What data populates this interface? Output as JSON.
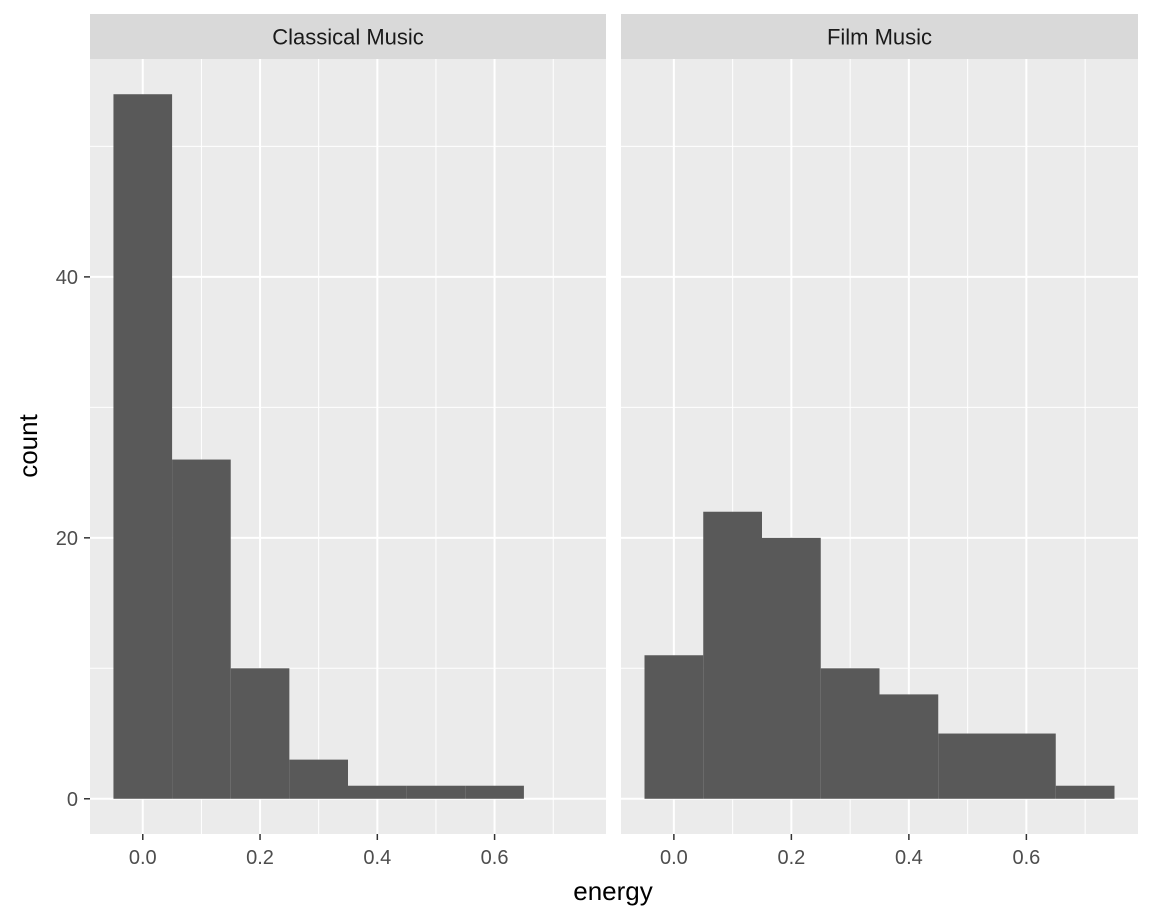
{
  "chart_data": {
    "type": "bar",
    "subtype": "faceted-histogram",
    "xlabel": "energy",
    "ylabel": "count",
    "bin_width": 0.1,
    "x_ticks": [
      0.0,
      0.2,
      0.4,
      0.6
    ],
    "x_tick_labels": [
      "0.0",
      "0.2",
      "0.4",
      "0.6"
    ],
    "y_ticks": [
      0,
      20,
      40
    ],
    "y_tick_labels": [
      "0",
      "20",
      "40"
    ],
    "xlim": [
      -0.09,
      0.79
    ],
    "ylim": [
      -2.7,
      56.7
    ],
    "grid": true,
    "panel_background": "#ebebeb",
    "strip_background": "#d9d9d9",
    "bar_color": "#595959",
    "grid_color": "#ffffff",
    "facets": [
      {
        "label": "Classical Music",
        "bins": [
          {
            "x0": -0.05,
            "x1": 0.05,
            "count": 54
          },
          {
            "x0": 0.05,
            "x1": 0.15,
            "count": 26
          },
          {
            "x0": 0.15,
            "x1": 0.25,
            "count": 10
          },
          {
            "x0": 0.25,
            "x1": 0.35,
            "count": 3
          },
          {
            "x0": 0.35,
            "x1": 0.45,
            "count": 1
          },
          {
            "x0": 0.45,
            "x1": 0.55,
            "count": 1
          },
          {
            "x0": 0.55,
            "x1": 0.65,
            "count": 1
          }
        ]
      },
      {
        "label": "Film Music",
        "bins": [
          {
            "x0": -0.05,
            "x1": 0.05,
            "count": 11
          },
          {
            "x0": 0.05,
            "x1": 0.15,
            "count": 22
          },
          {
            "x0": 0.15,
            "x1": 0.25,
            "count": 20
          },
          {
            "x0": 0.25,
            "x1": 0.35,
            "count": 10
          },
          {
            "x0": 0.35,
            "x1": 0.45,
            "count": 8
          },
          {
            "x0": 0.45,
            "x1": 0.55,
            "count": 5
          },
          {
            "x0": 0.55,
            "x1": 0.65,
            "count": 5
          },
          {
            "x0": 0.65,
            "x1": 0.75,
            "count": 1
          }
        ]
      }
    ]
  }
}
